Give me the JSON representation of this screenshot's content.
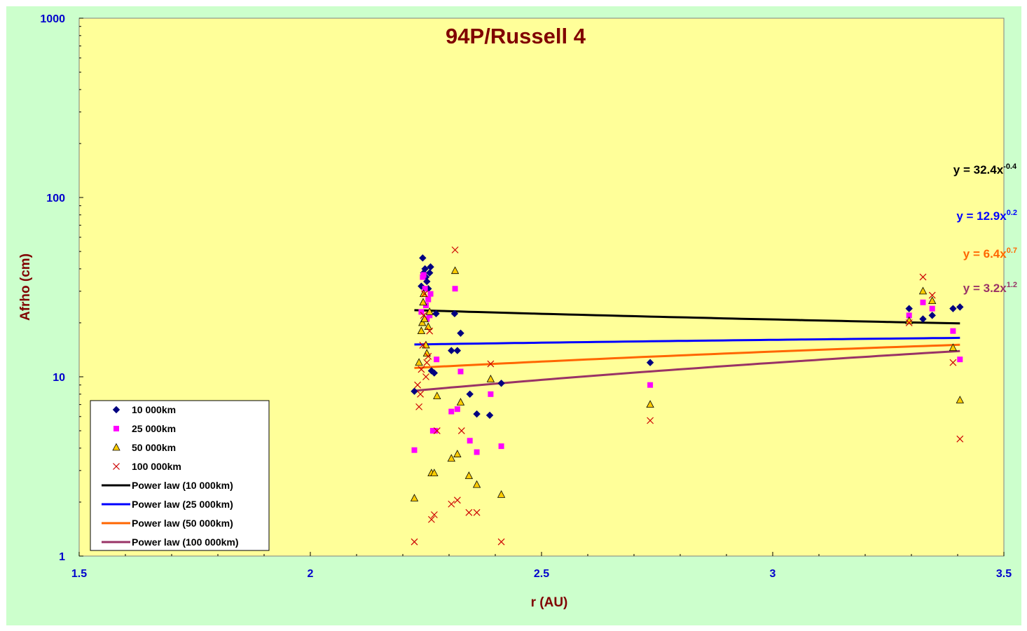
{
  "chart_data": {
    "type": "scatter",
    "title": "94P/Russell  4",
    "xlabel": "r (AU)",
    "ylabel": "Afrho (cm)",
    "xlim": [
      1.5,
      3.5
    ],
    "ylim": [
      1,
      1000
    ],
    "yscale": "log",
    "x_ticks": [
      "1.5",
      "2",
      "2.5",
      "3",
      "3.5"
    ],
    "x_tick_values": [
      1.5,
      2,
      2.5,
      3,
      3.5
    ],
    "y_ticks": [
      "1",
      "10",
      "100",
      "1000"
    ],
    "y_tick_values": [
      1,
      10,
      100,
      1000
    ],
    "legend_position": "bottom-left",
    "plot_background": "#ffff99",
    "figure_background": "#ccffcc",
    "series": [
      {
        "name": "10 000km",
        "marker": "diamond",
        "color": "#000080",
        "points": [
          [
            2.225,
            8.3
          ],
          [
            2.24,
            32
          ],
          [
            2.243,
            46
          ],
          [
            2.245,
            38
          ],
          [
            2.248,
            40
          ],
          [
            2.25,
            36
          ],
          [
            2.252,
            34
          ],
          [
            2.255,
            31
          ],
          [
            2.258,
            38
          ],
          [
            2.26,
            41
          ],
          [
            2.262,
            10.8
          ],
          [
            2.268,
            10.5
          ],
          [
            2.272,
            22.5
          ],
          [
            2.305,
            14
          ],
          [
            2.312,
            22.5
          ],
          [
            2.318,
            14
          ],
          [
            2.325,
            17.5
          ],
          [
            2.345,
            8
          ],
          [
            2.36,
            6.2
          ],
          [
            2.388,
            6.1
          ],
          [
            2.413,
            9.2
          ],
          [
            2.735,
            12
          ],
          [
            3.295,
            24
          ],
          [
            3.325,
            21
          ],
          [
            3.345,
            22
          ],
          [
            3.39,
            24
          ],
          [
            3.405,
            24.5
          ]
        ]
      },
      {
        "name": "25 000km",
        "marker": "square",
        "color": "#ff00ff",
        "points": [
          [
            2.225,
            3.9
          ],
          [
            2.24,
            23
          ],
          [
            2.243,
            36
          ],
          [
            2.245,
            37
          ],
          [
            2.248,
            31
          ],
          [
            2.25,
            25
          ],
          [
            2.252,
            21
          ],
          [
            2.255,
            27
          ],
          [
            2.258,
            22
          ],
          [
            2.26,
            29
          ],
          [
            2.265,
            5
          ],
          [
            2.27,
            5
          ],
          [
            2.273,
            12.5
          ],
          [
            2.305,
            6.4
          ],
          [
            2.313,
            31
          ],
          [
            2.318,
            6.6
          ],
          [
            2.325,
            10.7
          ],
          [
            2.345,
            4.4
          ],
          [
            2.36,
            3.8
          ],
          [
            2.39,
            8
          ],
          [
            2.413,
            4.1
          ],
          [
            2.735,
            9
          ],
          [
            3.295,
            22
          ],
          [
            3.325,
            26
          ],
          [
            3.345,
            24
          ],
          [
            3.39,
            18
          ],
          [
            3.405,
            12.5
          ]
        ]
      },
      {
        "name": "50 000km",
        "marker": "triangle",
        "color": "#ffcc00",
        "points": [
          [
            2.225,
            2.1
          ],
          [
            2.235,
            12
          ],
          [
            2.24,
            18
          ],
          [
            2.242,
            20
          ],
          [
            2.244,
            26
          ],
          [
            2.245,
            29
          ],
          [
            2.247,
            21
          ],
          [
            2.25,
            15
          ],
          [
            2.252,
            13.5
          ],
          [
            2.255,
            19
          ],
          [
            2.258,
            23
          ],
          [
            2.262,
            2.9
          ],
          [
            2.268,
            2.9
          ],
          [
            2.274,
            7.8
          ],
          [
            2.305,
            3.5
          ],
          [
            2.313,
            39
          ],
          [
            2.318,
            3.7
          ],
          [
            2.325,
            7.2
          ],
          [
            2.343,
            2.8
          ],
          [
            2.36,
            2.5
          ],
          [
            2.39,
            9.7
          ],
          [
            2.413,
            2.2
          ],
          [
            2.735,
            7
          ],
          [
            3.295,
            20.5
          ],
          [
            3.325,
            30
          ],
          [
            3.345,
            26.5
          ],
          [
            3.39,
            14.5
          ],
          [
            3.405,
            7.4
          ]
        ]
      },
      {
        "name": "100 000km",
        "marker": "x",
        "color": "#cc0000",
        "points": [
          [
            2.225,
            1.2
          ],
          [
            2.232,
            9
          ],
          [
            2.235,
            6.8
          ],
          [
            2.238,
            8
          ],
          [
            2.24,
            11
          ],
          [
            2.243,
            15
          ],
          [
            2.245,
            22
          ],
          [
            2.247,
            29
          ],
          [
            2.25,
            10
          ],
          [
            2.252,
            12
          ],
          [
            2.255,
            13
          ],
          [
            2.258,
            18
          ],
          [
            2.262,
            1.6
          ],
          [
            2.268,
            1.7
          ],
          [
            2.274,
            5
          ],
          [
            2.305,
            1.95
          ],
          [
            2.313,
            51
          ],
          [
            2.318,
            2.05
          ],
          [
            2.327,
            5
          ],
          [
            2.343,
            1.75
          ],
          [
            2.36,
            1.75
          ],
          [
            2.39,
            11.8
          ],
          [
            2.413,
            1.2
          ],
          [
            2.735,
            5.7
          ],
          [
            3.295,
            20
          ],
          [
            3.325,
            36
          ],
          [
            3.345,
            28.5
          ],
          [
            3.39,
            12
          ],
          [
            3.405,
            4.5
          ]
        ]
      }
    ],
    "trendlines": [
      {
        "name": "Power law (10 000km)",
        "color": "#000000",
        "a": 32.4,
        "b": -0.4,
        "x_range": [
          2.225,
          3.405
        ],
        "eq_base": "y = 32.4x",
        "eq_exp": "-0.4"
      },
      {
        "name": "Power law (25 000km)",
        "color": "#0000ff",
        "a": 12.9,
        "b": 0.2,
        "x_range": [
          2.225,
          3.405
        ],
        "eq_base": "y = 12.9x",
        "eq_exp": "0.2"
      },
      {
        "name": "Power law (50 000km)",
        "color": "#ff6600",
        "a": 6.4,
        "b": 0.7,
        "x_range": [
          2.225,
          3.405
        ],
        "eq_base": "y = 6.4x",
        "eq_exp": "0.7"
      },
      {
        "name": "Power law (100 000km)",
        "color": "#993366",
        "a": 3.2,
        "b": 1.2,
        "x_range": [
          2.225,
          3.405
        ],
        "eq_base": "y = 3.2x",
        "eq_exp": "1.2"
      }
    ]
  }
}
